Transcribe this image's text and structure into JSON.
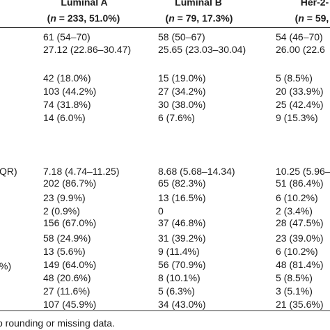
{
  "table": {
    "columns": [
      {
        "title": "Luminal A",
        "n_label": "n",
        "n_rest": " = 233, 51.0%)"
      },
      {
        "title": "Luminal B",
        "n_label": "n",
        "n_rest": " = 79, 17.3%)"
      },
      {
        "title": "Her-2-",
        "n_label": "n",
        "n_rest": " = 59,"
      }
    ],
    "row_labels": {
      "iqr_fragment": "QR)",
      "percent_fragment": "%)"
    },
    "rows": [
      [
        "61 (54–70)",
        "58 (50–67)",
        "54 (46–70)"
      ],
      [
        "27.12 (22.86–30.47)",
        "25.65 (23.03–30.04)",
        "26.00 (22.6"
      ],
      [
        "42 (18.0%)",
        "15 (19.0%)",
        "5 (8.5%)"
      ],
      [
        "103 (44.2%)",
        "27 (34.2%)",
        "20 (33.9%)"
      ],
      [
        "74 (31.8%)",
        "30 (38.0%)",
        "25 (42.4%)"
      ],
      [
        "14 (6.0%)",
        "6 (7.6%)",
        "9 (15.3%)"
      ],
      [
        "7.18 (4.74–11.25)",
        "8.68 (5.68–14.34)",
        "10.25 (5.96–"
      ],
      [
        "202 (86.7%)",
        "65 (82.3%)",
        "51 (86.4%)"
      ],
      [
        "23 (9.9%)",
        "13 (16.5%)",
        "6 (10.2%)"
      ],
      [
        "2 (0.9%)",
        "0",
        "2 (3.4%)"
      ],
      [
        "156 (67.0%)",
        "37 (46.8%)",
        "28 (47.5%)"
      ],
      [
        "58 (24.9%)",
        "31 (39.2%)",
        "23 (39.0%)"
      ],
      [
        "13 (5.6%)",
        "9 (11.4%)",
        "6 (10.2%)"
      ],
      [
        "149 (64.0%)",
        "56 (70.9%)",
        "48 (81.4%)"
      ],
      [
        "48 (20.6%)",
        "8 (10.1%)",
        "5 (8.5%)"
      ],
      [
        "27 (11.6%)",
        "5 (6.3%)",
        "3 (5.1%)"
      ],
      [
        "107 (45.9%)",
        "34 (43.0%)",
        "21 (35.6%)"
      ]
    ],
    "footnote": "o rounding or missing data."
  }
}
